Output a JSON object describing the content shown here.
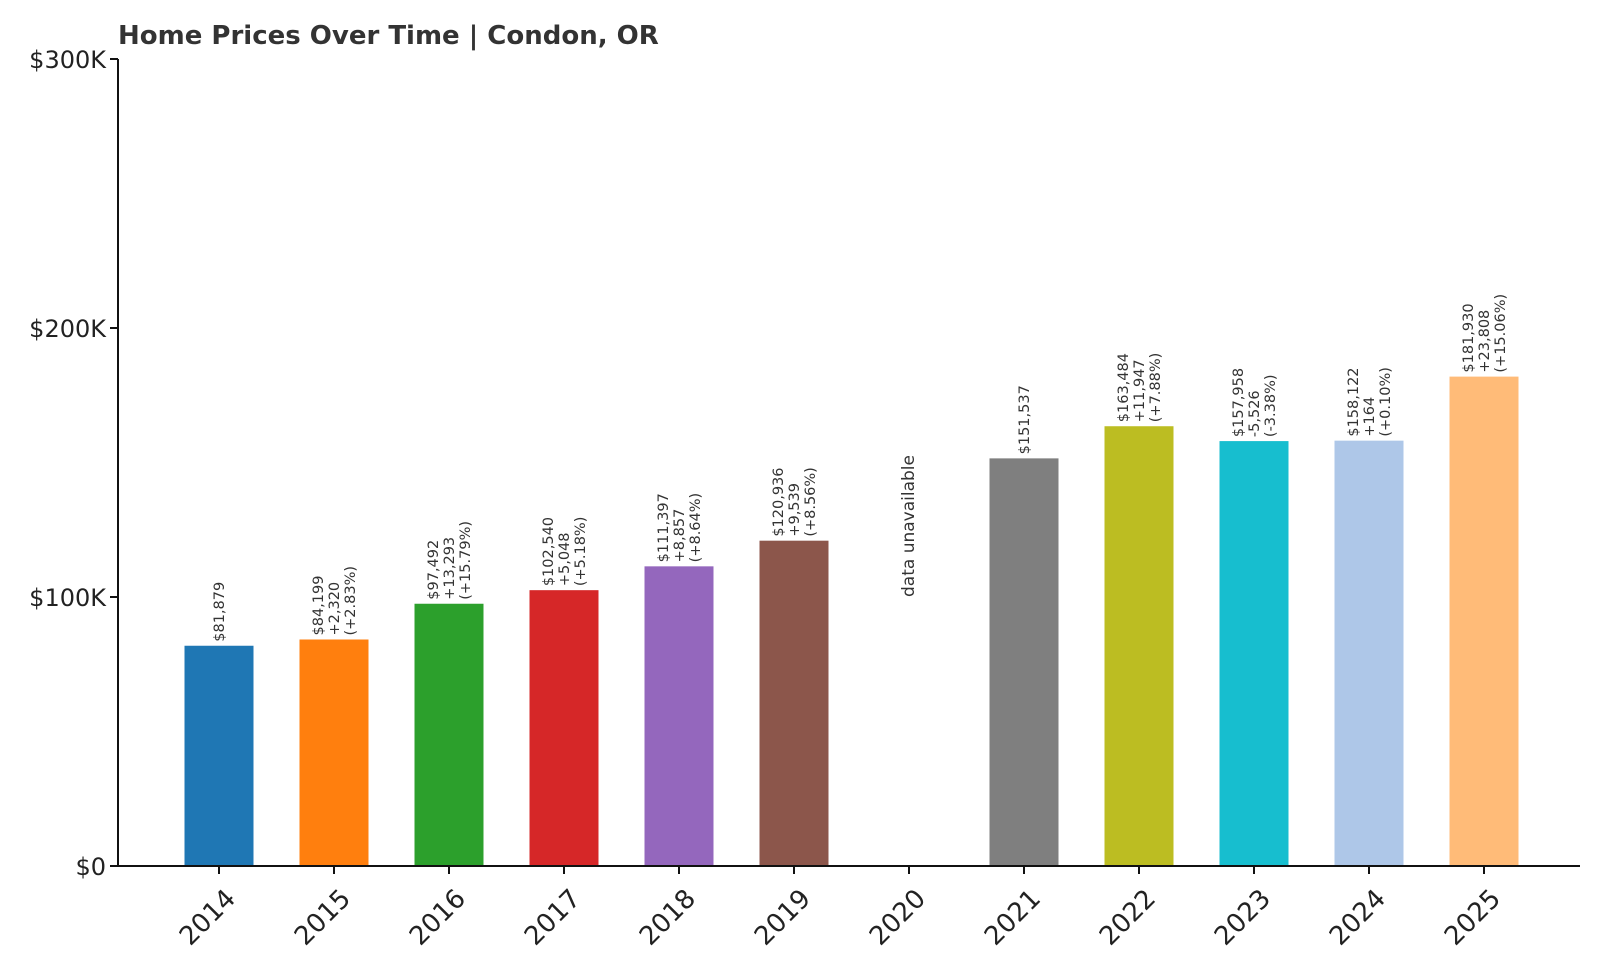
{
  "chart_data": {
    "type": "bar",
    "title": "Home Prices Over Time | Condon, OR",
    "xlabel": "",
    "ylabel": "",
    "ylim": [
      0,
      300000
    ],
    "y_ticks": [
      {
        "value": 0,
        "label": "$0"
      },
      {
        "value": 100000,
        "label": "$100K"
      },
      {
        "value": 200000,
        "label": "$200K"
      },
      {
        "value": 300000,
        "label": "$300K"
      }
    ],
    "grid": false,
    "legend": "none",
    "categories": [
      "2014",
      "2015",
      "2016",
      "2017",
      "2018",
      "2019",
      "2020",
      "2021",
      "2022",
      "2023",
      "2024",
      "2025"
    ],
    "values": [
      81879,
      84199,
      97492,
      102540,
      111397,
      120936,
      null,
      151537,
      163484,
      157958,
      158122,
      181930
    ],
    "colors": [
      "#1f77b4",
      "#ff7f0e",
      "#2ca02c",
      "#d62728",
      "#9467bd",
      "#8c564b",
      "#e377c2",
      "#7f7f7f",
      "#bcbd22",
      "#17becf",
      "#aec7e8",
      "#ffbb78"
    ],
    "data_labels": [
      [
        "$81,879"
      ],
      [
        "$84,199",
        "+2,320",
        "(+2.83%)"
      ],
      [
        "$97,492",
        "+13,293",
        "(+15.79%)"
      ],
      [
        "$102,540",
        "+5,048",
        "(+5.18%)"
      ],
      [
        "$111,397",
        "+8,857",
        "(+8.64%)"
      ],
      [
        "$120,936",
        "+9,539",
        "(+8.56%)"
      ],
      [
        "data unavailable"
      ],
      [
        "$151,537"
      ],
      [
        "$163,484",
        "+11,947",
        "(+7.88%)"
      ],
      [
        "$157,958",
        "-5,526",
        "(-3.38%)"
      ],
      [
        "$158,122",
        "+164",
        "(+0.10%)"
      ],
      [
        "$181,930",
        "+23,808",
        "(+15.06%)"
      ]
    ]
  }
}
